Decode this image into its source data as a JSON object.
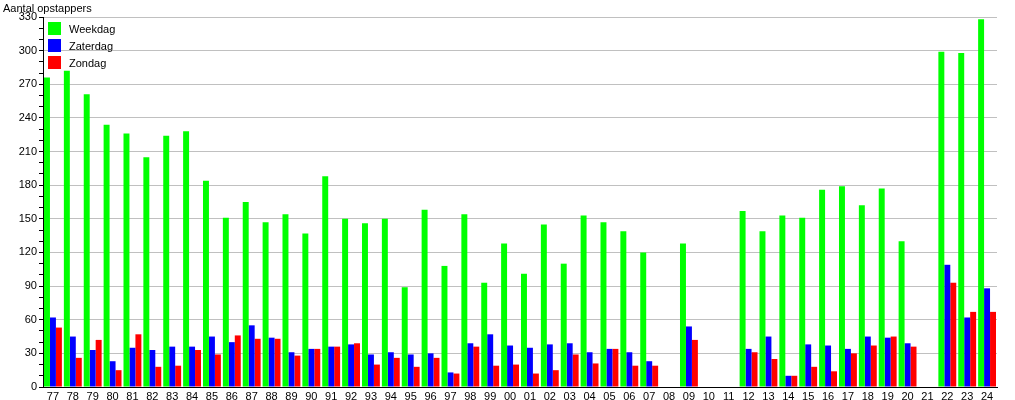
{
  "chart_data": {
    "type": "bar",
    "ylabel": "Aantal opstappers",
    "categories": [
      "77",
      "78",
      "79",
      "80",
      "81",
      "82",
      "83",
      "84",
      "85",
      "86",
      "87",
      "88",
      "89",
      "90",
      "91",
      "92",
      "93",
      "94",
      "95",
      "96",
      "97",
      "98",
      "99",
      "00",
      "01",
      "02",
      "03",
      "04",
      "05",
      "06",
      "07",
      "08",
      "09",
      "10",
      "11",
      "12",
      "13",
      "14",
      "15",
      "16",
      "17",
      "18",
      "19",
      "20",
      "21",
      "22",
      "23",
      "24"
    ],
    "series": [
      {
        "name": "Weekdag",
        "color": "#00ff00",
        "values": [
          276,
          282,
          261,
          234,
          226,
          205,
          224,
          228,
          184,
          151,
          165,
          147,
          154,
          137,
          188,
          150,
          146,
          150,
          89,
          158,
          108,
          154,
          93,
          128,
          101,
          145,
          110,
          153,
          147,
          139,
          120,
          null,
          128,
          null,
          null,
          157,
          139,
          153,
          151,
          176,
          179,
          162,
          177,
          130,
          null,
          299,
          298,
          328
        ]
      },
      {
        "name": "Zaterdag",
        "color": "#0000ff",
        "values": [
          62,
          45,
          33,
          23,
          35,
          33,
          36,
          36,
          45,
          40,
          55,
          44,
          31,
          34,
          36,
          38,
          29,
          31,
          29,
          30,
          13,
          39,
          47,
          37,
          35,
          38,
          39,
          31,
          34,
          31,
          23,
          null,
          54,
          null,
          null,
          34,
          45,
          10,
          38,
          37,
          34,
          45,
          44,
          39,
          null,
          109,
          62,
          88
        ]
      },
      {
        "name": "Zondag",
        "color": "#ff0000",
        "values": [
          53,
          26,
          42,
          15,
          47,
          18,
          19,
          33,
          29,
          46,
          43,
          43,
          28,
          34,
          36,
          39,
          20,
          26,
          18,
          26,
          12,
          36,
          19,
          20,
          12,
          15,
          29,
          21,
          34,
          19,
          19,
          null,
          42,
          null,
          null,
          31,
          25,
          10,
          18,
          14,
          30,
          37,
          45,
          36,
          null,
          93,
          67,
          67
        ]
      }
    ],
    "ylim": [
      0,
      330
    ],
    "yticks": [
      0,
      {
        "value": 10,
        "label": null
      },
      {
        "value": 20,
        "label": null
      },
      30,
      {
        "value": 40,
        "label": null
      },
      {
        "value": 50,
        "label": null
      },
      60,
      {
        "value": 70,
        "label": null
      },
      {
        "value": 80,
        "label": null
      },
      90,
      {
        "value": 100,
        "label": null
      },
      {
        "value": 110,
        "label": null
      },
      120,
      {
        "value": 130,
        "label": null
      },
      {
        "value": 140,
        "label": null
      },
      150,
      {
        "value": 160,
        "label": null
      },
      {
        "value": 170,
        "label": null
      },
      180,
      {
        "value": 190,
        "label": null
      },
      {
        "value": 200,
        "label": null
      },
      210,
      {
        "value": 220,
        "label": null
      },
      {
        "value": 230,
        "label": null
      },
      240,
      {
        "value": 250,
        "label": null
      },
      {
        "value": 260,
        "label": null
      },
      270,
      {
        "value": 280,
        "label": null
      },
      {
        "value": 290,
        "label": null
      },
      300,
      {
        "value": 310,
        "label": null
      },
      {
        "value": 320,
        "label": null
      },
      330
    ],
    "grid": "y",
    "legend": "top left"
  }
}
